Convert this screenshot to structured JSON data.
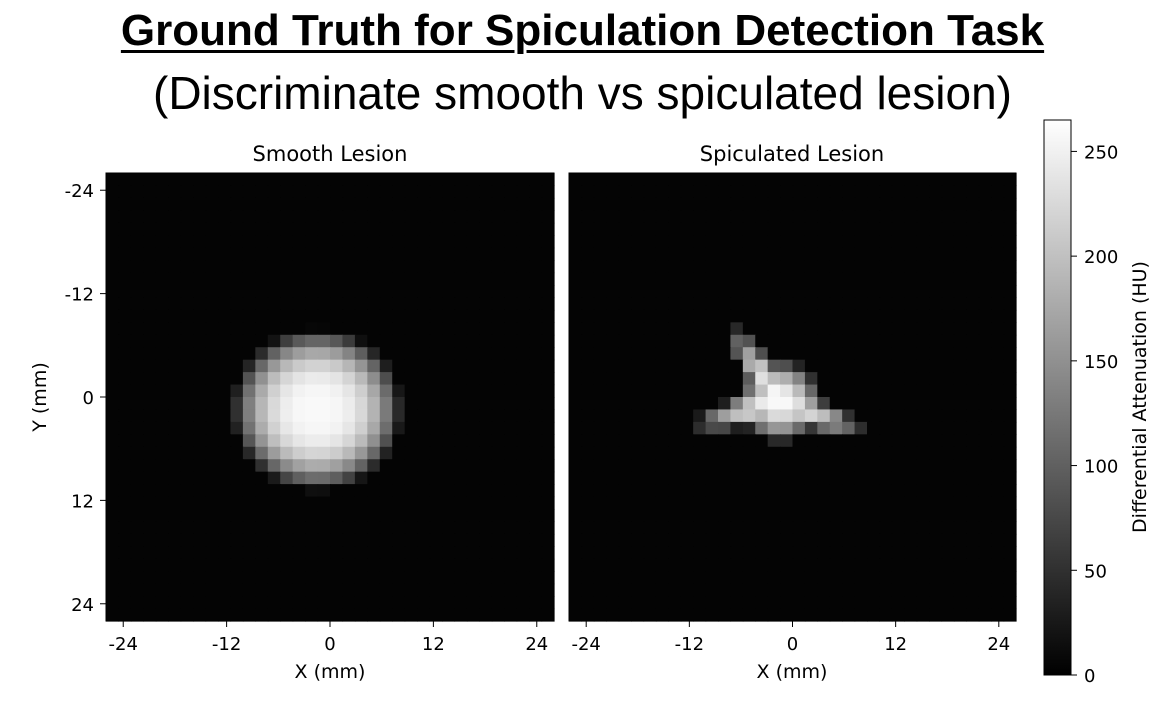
{
  "header": {
    "title": "Ground Truth for Spiculation Detection Task",
    "subtitle": "(Discriminate smooth vs spiculated lesion)"
  },
  "chart_data": [
    {
      "type": "heatmap",
      "title": "Smooth Lesion",
      "xlabel": "X (mm)",
      "ylabel": "Y (mm)",
      "xlim": [
        -26,
        26
      ],
      "ylim": [
        -26,
        26
      ],
      "y_inverted": true,
      "xticks": [
        -24,
        -12,
        0,
        12,
        24
      ],
      "yticks": [
        -24,
        -12,
        0,
        12,
        24
      ],
      "colormap": "gray",
      "lesion": {
        "shape": "ellipse",
        "center_x": -1.5,
        "center_y": 1.5,
        "radius_x": 10,
        "radius_y": 9.5,
        "peak_value": 255
      }
    },
    {
      "type": "heatmap",
      "title": "Spiculated Lesion",
      "xlabel": "X (mm)",
      "ylabel": "",
      "xlim": [
        -26,
        26
      ],
      "ylim": [
        -26,
        26
      ],
      "y_inverted": true,
      "xticks": [
        -24,
        -12,
        0,
        12,
        24
      ],
      "colormap": "gray",
      "lesion": {
        "shape": "spiculated",
        "center_x": -1.5,
        "center_y": 0.5,
        "core_radius": 5,
        "spicule_count": 5,
        "spicule_length": 6,
        "peak_value": 255
      }
    }
  ],
  "colorbar": {
    "label": "Differential Attenuation (HU)",
    "min": 0,
    "max": 265,
    "ticks": [
      0,
      50,
      100,
      150,
      200,
      250
    ]
  }
}
